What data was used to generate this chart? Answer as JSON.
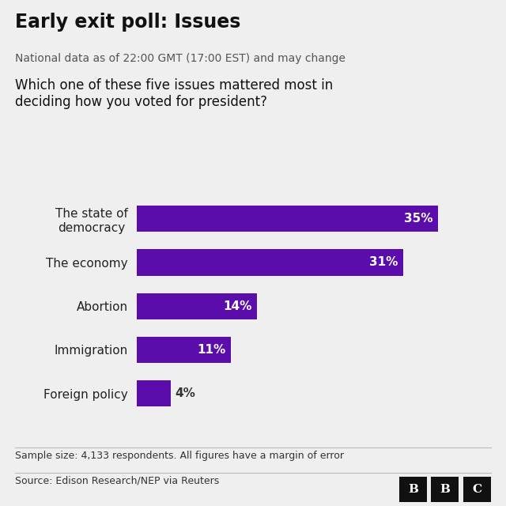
{
  "title": "Early exit poll: Issues",
  "subtitle": "National data as of 22:00 GMT (17:00 EST) and may change",
  "question": "Which one of these five issues mattered most in\ndeciding how you voted for president?",
  "categories": [
    "The state of\ndemocracy",
    "The economy",
    "Abortion",
    "Immigration",
    "Foreign policy"
  ],
  "values": [
    35,
    31,
    14,
    11,
    4
  ],
  "labels": [
    "35%",
    "31%",
    "14%",
    "11%",
    "4%"
  ],
  "bar_color": "#5B0DAB",
  "label_color_inside": "#ffffff",
  "label_color_outside": "#333333",
  "background_color": "#efefef",
  "title_fontsize": 17,
  "subtitle_fontsize": 10,
  "question_fontsize": 12,
  "bar_label_fontsize": 11,
  "category_fontsize": 11,
  "footer_text1": "Sample size: 4,133 respondents. All figures have a margin of error",
  "footer_text2": "Source: Edison Research/NEP via Reuters",
  "bbc_letters": [
    "B",
    "B",
    "C"
  ],
  "xlim": [
    0,
    40
  ]
}
